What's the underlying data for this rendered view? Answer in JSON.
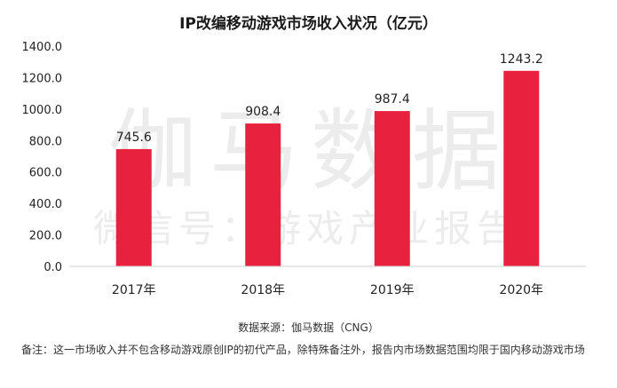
{
  "watermark": {
    "main": "伽马数据",
    "sub": "微信号：游戏产业报告"
  },
  "chart_data": {
    "type": "bar",
    "title": "IP改编移动游戏市场收入状况（亿元）",
    "categories": [
      "2017年",
      "2018年",
      "2019年",
      "2020年"
    ],
    "values": [
      745.6,
      908.4,
      987.4,
      1243.2
    ],
    "value_labels": [
      "745.6",
      "908.4",
      "987.4",
      "1243.2"
    ],
    "yticks": [
      "0.0",
      "200.0",
      "400.0",
      "600.0",
      "800.0",
      "1000.0",
      "1200.0",
      "1400.0"
    ],
    "ylim": [
      0,
      1400
    ],
    "xlabel": "",
    "ylabel": "",
    "grid": false,
    "bar_color": "#e8213f"
  },
  "source": "数据来源：伽马数据（CNG）",
  "note": "备注：这一市场收入并不包含移动游戏原创IP的初代产品，除特殊备注外，报告内市场数据范围均限于国内移动游戏市场"
}
